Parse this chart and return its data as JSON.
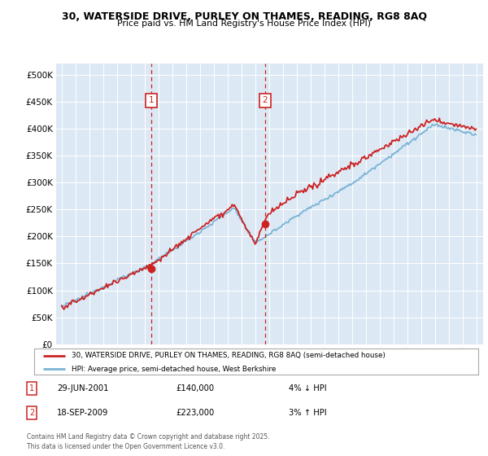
{
  "title1": "30, WATERSIDE DRIVE, PURLEY ON THAMES, READING, RG8 8AQ",
  "title2": "Price paid vs. HM Land Registry's House Price Index (HPI)",
  "bg_color": "#dce9f5",
  "red_line_label": "30, WATERSIDE DRIVE, PURLEY ON THAMES, READING, RG8 8AQ (semi-detached house)",
  "blue_line_label": "HPI: Average price, semi-detached house, West Berkshire",
  "footnote": "Contains HM Land Registry data © Crown copyright and database right 2025.\nThis data is licensed under the Open Government Licence v3.0.",
  "marker1_date": "29-JUN-2001",
  "marker1_price": 140000,
  "marker1_pct": "4% ↓ HPI",
  "marker2_date": "18-SEP-2009",
  "marker2_price": 223000,
  "marker2_pct": "3% ↑ HPI",
  "ylim": [
    0,
    520000
  ],
  "yticks": [
    0,
    50000,
    100000,
    150000,
    200000,
    250000,
    300000,
    350000,
    400000,
    450000,
    500000
  ],
  "sale1_t": 2001.5,
  "sale2_t": 2009.71,
  "sale1_price": 140000,
  "sale2_price": 223000
}
